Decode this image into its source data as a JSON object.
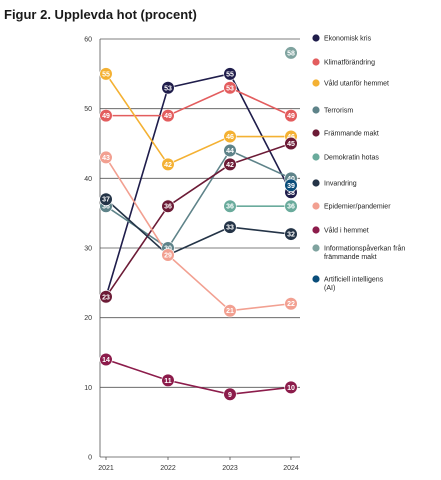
{
  "figure": {
    "title": "Figur 2. Upplevda hot (procent)"
  },
  "chart_data": {
    "type": "line",
    "title": "Figur 2. Upplevda hot (procent)",
    "x": [
      "2021",
      "2022",
      "2023",
      "2024"
    ],
    "ylim": [
      0,
      60
    ],
    "yticks": [
      "0",
      "10",
      "20",
      "30",
      "40",
      "50",
      "60"
    ],
    "grid": true,
    "legend_placement": "right",
    "series": [
      {
        "name": "Ekonomisk kris",
        "color": "#1f1d4b",
        "values": [
          23,
          53,
          55,
          38
        ],
        "labels": [
          "23",
          "53",
          "55",
          "38"
        ]
      },
      {
        "name": "Klimatförändring",
        "color": "#e35d5e",
        "values": [
          49,
          49,
          53,
          49
        ],
        "labels": [
          "49",
          "49",
          "53",
          "49"
        ]
      },
      {
        "name": "Våld utanför hemmet",
        "color": "#f4b133",
        "values": [
          55,
          42,
          46,
          46
        ],
        "labels": [
          "55",
          "42",
          "46",
          "46"
        ]
      },
      {
        "name": "Terrorism",
        "color": "#5e8389",
        "values": [
          36,
          30,
          44,
          40
        ],
        "labels": [
          "36",
          "30",
          "44",
          "40"
        ]
      },
      {
        "name": "Främmande makt",
        "color": "#6c1b36",
        "values": [
          23,
          36,
          42,
          45
        ],
        "labels": [
          "23",
          "36",
          "42",
          "45"
        ]
      },
      {
        "name": "Demokratin hotas",
        "color": "#6aab9c",
        "values": [
          null,
          null,
          36,
          36
        ],
        "labels": [
          null,
          null,
          "36",
          "36"
        ]
      },
      {
        "name": "Invandring",
        "color": "#243447",
        "values": [
          37,
          29,
          33,
          32
        ],
        "labels": [
          "37",
          null,
          "33",
          "32"
        ]
      },
      {
        "name": "Epidemier/pandemier",
        "color": "#f2a091",
        "values": [
          43,
          29,
          21,
          22
        ],
        "labels": [
          "43",
          "29",
          "21",
          "22"
        ]
      },
      {
        "name": "Våld i hemmet",
        "color": "#8c1c4b",
        "values": [
          14,
          11,
          9,
          10
        ],
        "labels": [
          "14",
          "11",
          "9",
          "10"
        ]
      },
      {
        "name": "Informationspåverkan från främmande makt",
        "color": "#7fa39f",
        "values": [
          null,
          null,
          null,
          58
        ],
        "labels": [
          null,
          null,
          null,
          "58"
        ]
      },
      {
        "name": "Artificiell intelligens (AI)",
        "color": "#0a4d7a",
        "values": [
          null,
          null,
          null,
          39
        ],
        "labels": [
          null,
          null,
          null,
          "39"
        ]
      }
    ]
  }
}
